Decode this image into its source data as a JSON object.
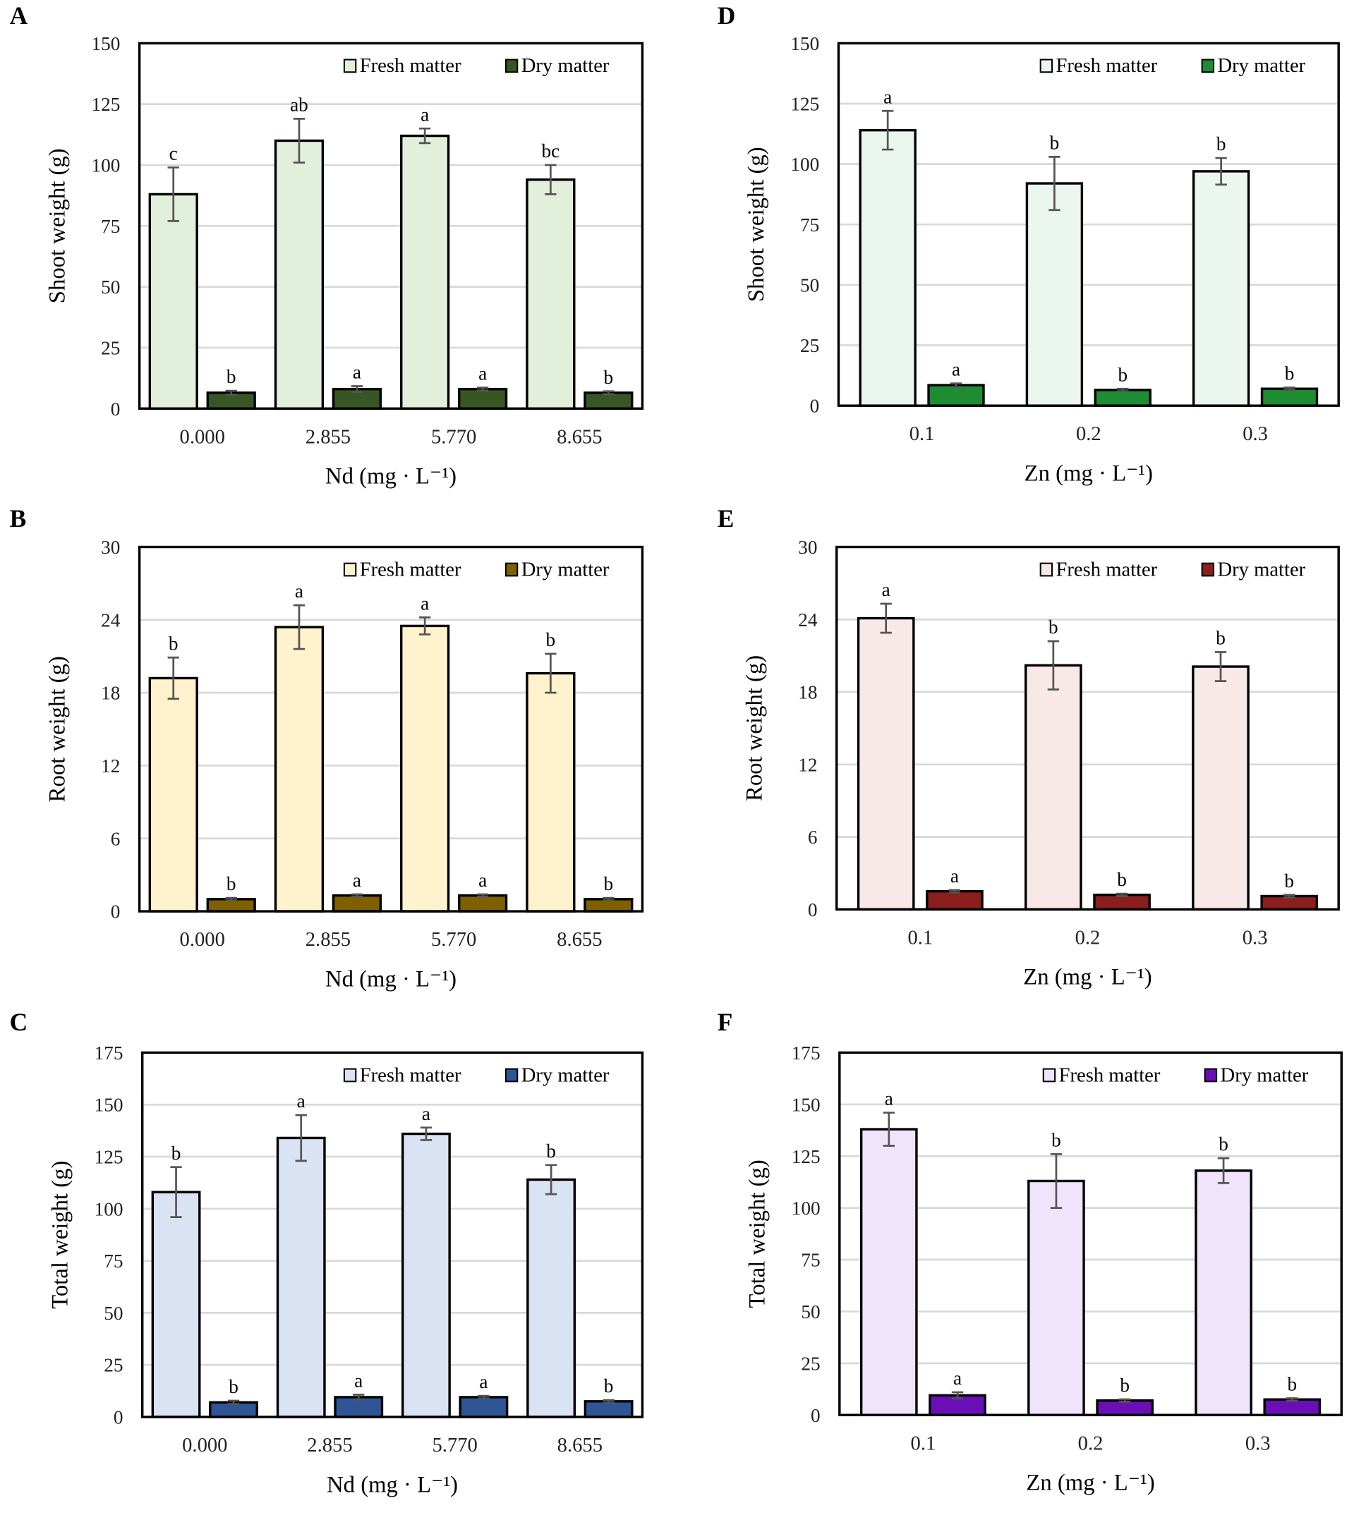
{
  "chart_data": [
    {
      "panel": "A",
      "type": "bar",
      "ylabel": "Shoot weight (g)",
      "xlabel": "Nd (mg · L⁻¹)",
      "ylim": [
        0,
        150
      ],
      "yticks": [
        "0",
        "25",
        "50",
        "75",
        "100",
        "125",
        "150"
      ],
      "categories": [
        "0.000",
        "2.855",
        "5.770",
        "8.655"
      ],
      "grid": true,
      "legend": "top-right",
      "series": [
        {
          "name": "Fresh matter",
          "color": "#e2efda",
          "values": [
            88,
            110,
            112,
            94
          ],
          "errors": [
            11,
            9,
            3,
            6
          ],
          "letters": [
            "c",
            "ab",
            "a",
            "bc"
          ]
        },
        {
          "name": "Dry matter",
          "color": "#375623",
          "values": [
            6.5,
            8,
            8,
            6.5
          ],
          "errors": [
            0.8,
            1.2,
            0.6,
            0.6
          ],
          "letters": [
            "b",
            "a",
            "a",
            "b"
          ]
        }
      ]
    },
    {
      "panel": "D",
      "type": "bar",
      "ylabel": "Shoot weight (g)",
      "xlabel": "Zn (mg · L⁻¹)",
      "ylim": [
        0,
        150
      ],
      "yticks": [
        "0",
        "25",
        "50",
        "75",
        "100",
        "125",
        "150"
      ],
      "categories": [
        "0.1",
        "0.2",
        "0.3"
      ],
      "grid": true,
      "legend": "top-right",
      "series": [
        {
          "name": "Fresh matter",
          "color": "#ebf7ee",
          "values": [
            114,
            92,
            97
          ],
          "errors": [
            8,
            11,
            5.5
          ],
          "letters": [
            "a",
            "b",
            "b"
          ]
        },
        {
          "name": "Dry matter",
          "color": "#1e8c32",
          "values": [
            8.5,
            6.5,
            7
          ],
          "errors": [
            0.7,
            0.5,
            0.5
          ],
          "letters": [
            "a",
            "b",
            "b"
          ]
        }
      ]
    },
    {
      "panel": "B",
      "type": "bar",
      "ylabel": "Root weight (g)",
      "xlabel": "Nd (mg · L⁻¹)",
      "ylim": [
        0,
        30
      ],
      "yticks": [
        "0",
        "6",
        "12",
        "18",
        "24",
        "30"
      ],
      "categories": [
        "0.000",
        "2.855",
        "5.770",
        "8.655"
      ],
      "grid": true,
      "legend": "top-right",
      "series": [
        {
          "name": "Fresh matter",
          "color": "#fff2cc",
          "values": [
            19.2,
            23.4,
            23.5,
            19.6
          ],
          "errors": [
            1.7,
            1.8,
            0.7,
            1.6
          ],
          "letters": [
            "b",
            "a",
            "a",
            "b"
          ]
        },
        {
          "name": "Dry matter",
          "color": "#7f6000",
          "values": [
            1.0,
            1.3,
            1.3,
            1.0
          ],
          "errors": [
            0.1,
            0.1,
            0.1,
            0.1
          ],
          "letters": [
            "b",
            "a",
            "a",
            "b"
          ]
        }
      ]
    },
    {
      "panel": "E",
      "type": "bar",
      "ylabel": "Root weight (g)",
      "xlabel": "Zn (mg · L⁻¹)",
      "ylim": [
        0,
        30
      ],
      "yticks": [
        "0",
        "6",
        "12",
        "18",
        "24",
        "30"
      ],
      "categories": [
        "0.1",
        "0.2",
        "0.3"
      ],
      "grid": true,
      "legend": "top-right",
      "series": [
        {
          "name": "Fresh matter",
          "color": "#f8e9e7",
          "values": [
            24.1,
            20.2,
            20.1
          ],
          "errors": [
            1.2,
            2.0,
            1.2
          ],
          "letters": [
            "a",
            "b",
            "b"
          ]
        },
        {
          "name": "Dry matter",
          "color": "#8b1e1e",
          "values": [
            1.5,
            1.2,
            1.1
          ],
          "errors": [
            0.1,
            0.1,
            0.1
          ],
          "letters": [
            "a",
            "b",
            "b"
          ]
        }
      ]
    },
    {
      "panel": "C",
      "type": "bar",
      "ylabel": "Total weight (g)",
      "xlabel": "Nd (mg · L⁻¹)",
      "ylim": [
        0,
        175
      ],
      "yticks": [
        "0",
        "25",
        "50",
        "75",
        "100",
        "125",
        "150",
        "175"
      ],
      "categories": [
        "0.000",
        "2.855",
        "5.770",
        "8.655"
      ],
      "grid": true,
      "legend": "top-right",
      "series": [
        {
          "name": "Fresh matter",
          "color": "#dae3f3",
          "values": [
            108,
            134,
            136,
            114
          ],
          "errors": [
            12,
            11,
            3,
            7
          ],
          "letters": [
            "b",
            "a",
            "a",
            "b"
          ]
        },
        {
          "name": "Dry matter",
          "color": "#2f5597",
          "values": [
            7,
            9.5,
            9.5,
            7.5
          ],
          "errors": [
            0.8,
            1.2,
            0.6,
            0.6
          ],
          "letters": [
            "b",
            "a",
            "a",
            "b"
          ]
        }
      ]
    },
    {
      "panel": "F",
      "type": "bar",
      "ylabel": "Total weight (g)",
      "xlabel": "Zn (mg · L⁻¹)",
      "ylim": [
        0,
        175
      ],
      "yticks": [
        "0",
        "25",
        "50",
        "75",
        "100",
        "125",
        "150",
        "175"
      ],
      "categories": [
        "0.1",
        "0.2",
        "0.3"
      ],
      "grid": true,
      "legend": "top-right",
      "series": [
        {
          "name": "Fresh matter",
          "color": "#efe4fb",
          "values": [
            138,
            113,
            118
          ],
          "errors": [
            8,
            13,
            6
          ],
          "letters": [
            "a",
            "b",
            "b"
          ]
        },
        {
          "name": "Dry matter",
          "color": "#6a0fb5",
          "values": [
            9.5,
            7,
            7.5
          ],
          "errors": [
            1.5,
            0.6,
            0.6
          ],
          "letters": [
            "a",
            "b",
            "b"
          ]
        }
      ]
    }
  ]
}
